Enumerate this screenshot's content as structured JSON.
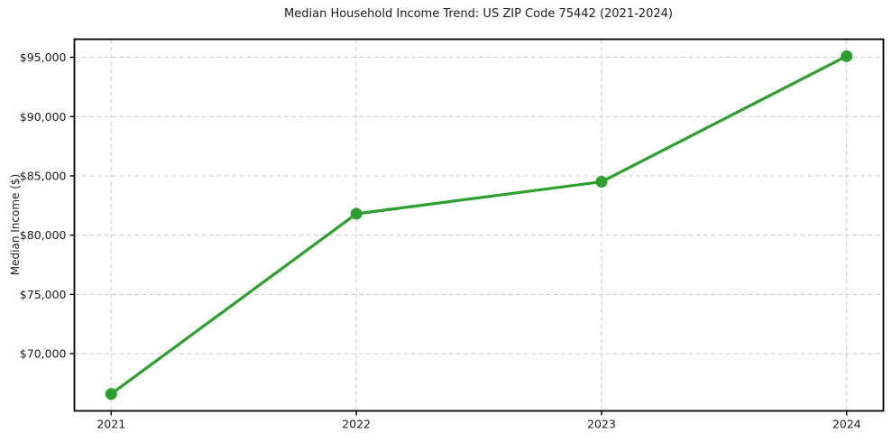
{
  "chart_data": {
    "type": "line",
    "title": "Median Household Income Trend: US ZIP Code 75442 (2021-2024)",
    "xlabel": "",
    "ylabel": "Median Income ($)",
    "x": [
      2021,
      2022,
      2023,
      2024
    ],
    "values": [
      66600,
      81800,
      84500,
      95100
    ],
    "series_name": "Median Household Income",
    "xlim": [
      2020.85,
      2024.15
    ],
    "ylim": [
      65175,
      96525
    ],
    "xticks": [
      2021,
      2022,
      2023,
      2024
    ],
    "xtick_labels": [
      "2021",
      "2022",
      "2023",
      "2024"
    ],
    "yticks": [
      70000,
      75000,
      80000,
      85000,
      90000,
      95000
    ],
    "ytick_labels": [
      "$70,000",
      "$75,000",
      "$80,000",
      "$85,000",
      "$90,000",
      "$95,000"
    ],
    "grid": true,
    "grid_style": "dashed",
    "legend": false,
    "legend_position": "none",
    "line_color": "#2ca02c",
    "marker": "circle",
    "marker_diameter": 13,
    "line_width": 3.2,
    "grid_color": "#cccccc",
    "axis_color": "#000000",
    "text_color": "#1a1a1a",
    "background_color": "#ffffff"
  }
}
